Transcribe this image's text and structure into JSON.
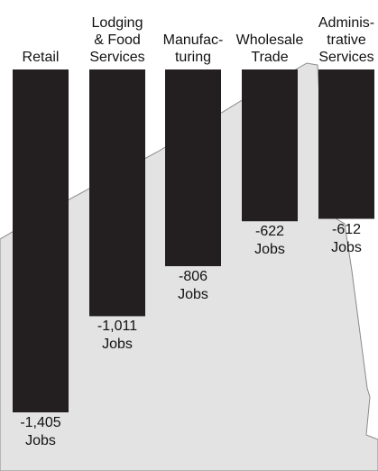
{
  "chart_data": {
    "type": "bar",
    "categories": [
      "Retail",
      "Lodging\n& Food\nServices",
      "Manufac-\nturing",
      "Wholesale\nTrade",
      "Adminis-\ntrative\nServices"
    ],
    "values": [
      -1405,
      -1011,
      -806,
      -622,
      -612
    ],
    "value_labels": [
      "-1,405\nJobs",
      "-1,011\nJobs",
      "-806\nJobs",
      "-622\nJobs",
      "-612\nJobs"
    ],
    "title": "",
    "xlabel": "",
    "ylabel": "",
    "ylim": [
      -1405,
      0
    ],
    "grid": false,
    "legend": "none",
    "colors": {
      "bar": "#231f20",
      "background_map": "#e3e3e3",
      "map_outline": "#8a8a8a"
    }
  }
}
